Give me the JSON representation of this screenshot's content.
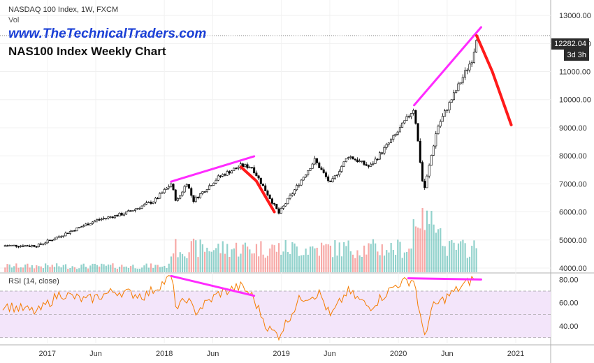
{
  "header": {
    "title": "NASDAQ 100 Index, 1W, FXCM",
    "volume_label": "Vol",
    "website": "www.TheTechnicalTraders.com",
    "chart_title": "NAS100 Index Weekly Chart",
    "rsi_label": "RSI (14, close)",
    "last_price": "12282.04",
    "countdown": "3d 3h"
  },
  "colors": {
    "up": "#26a69a",
    "down": "#ef5350",
    "candle": "#000000",
    "rsi_line": "#f57c00",
    "rsi_band": "#f3e5fa",
    "trendline": "#ff2bff",
    "projection": "#ff1a1a",
    "website": "#1a3fd6"
  },
  "chart_data": [
    {
      "type": "candlestick",
      "title": "NAS100 Index Weekly Chart",
      "y_ticks": [
        4000,
        5000,
        6000,
        7000,
        8000,
        9000,
        10000,
        11000,
        12000,
        13000
      ],
      "y_tick_labels": [
        "4000.00",
        "5000.00",
        "6000.00",
        "7000.00",
        "8000.00",
        "9000.00",
        "10000.00",
        "11000.00",
        "12000.00",
        "13000.00"
      ],
      "ylim": [
        3850,
        13550
      ],
      "x_ticks": [
        "2017",
        "Jun",
        "2018",
        "Jun",
        "2019",
        "Jun",
        "2020",
        "Jun",
        "2021"
      ],
      "x_tick_dates": [
        "2017-01-01",
        "2017-06-01",
        "2018-01-01",
        "2018-06-01",
        "2019-01-01",
        "2019-06-01",
        "2020-01-01",
        "2020-06-01",
        "2021-01-01"
      ],
      "xlim": [
        "2016-08-15",
        "2021-04-20"
      ],
      "price_path": [
        [
          "2016-08-15",
          4800
        ],
        [
          "2016-12-01",
          4800
        ],
        [
          "2017-02-01",
          5100
        ],
        [
          "2017-06-01",
          5700
        ],
        [
          "2017-09-01",
          5950
        ],
        [
          "2017-12-01",
          6400
        ],
        [
          "2018-01-22",
          7000
        ],
        [
          "2018-02-08",
          6350
        ],
        [
          "2018-03-12",
          7050
        ],
        [
          "2018-04-01",
          6400
        ],
        [
          "2018-06-20",
          7250
        ],
        [
          "2018-08-28",
          7650
        ],
        [
          "2018-10-01",
          7600
        ],
        [
          "2018-12-24",
          5950
        ],
        [
          "2019-04-15",
          7850
        ],
        [
          "2019-06-03",
          7000
        ],
        [
          "2019-07-29",
          8000
        ],
        [
          "2019-10-03",
          7600
        ],
        [
          "2019-12-27",
          8800
        ],
        [
          "2020-02-19",
          9700
        ],
        [
          "2020-03-20",
          6700
        ],
        [
          "2020-05-01",
          9000
        ],
        [
          "2020-08-20",
          11500
        ],
        [
          "2020-09-01",
          12282
        ]
      ],
      "volume_ticks": [
        4000,
        5000,
        6000
      ],
      "volume_note": "volume histogram in lower portion of price pane",
      "trendlines": [
        {
          "x": [
            "2018-01-22",
            "2018-10-08"
          ],
          "y": [
            7080,
            7980
          ]
        },
        {
          "x": [
            "2020-02-19",
            "2020-09-15"
          ],
          "y": [
            9800,
            12580
          ]
        }
      ],
      "projections": [
        {
          "x": [
            "2018-08-28",
            "2018-10-15",
            "2018-12-10"
          ],
          "y": [
            7600,
            7100,
            6000
          ]
        },
        {
          "x": [
            "2020-09-01",
            "2020-10-20",
            "2020-12-18"
          ],
          "y": [
            12280,
            11000,
            9100
          ]
        }
      ]
    },
    {
      "type": "line",
      "title": "RSI (14, close)",
      "y_ticks": [
        40,
        60,
        80
      ],
      "y_tick_labels": [
        "40.00",
        "60.00",
        "80.00"
      ],
      "ylim": [
        25,
        85
      ],
      "band": [
        30,
        70
      ],
      "grid": true,
      "trendlines": [
        {
          "x": [
            "2018-01-22",
            "2018-10-08"
          ],
          "y": [
            83,
            66
          ]
        },
        {
          "x": [
            "2020-02-01",
            "2020-09-15"
          ],
          "y": [
            81,
            80
          ]
        }
      ],
      "series": [
        {
          "x": [
            "2016-08-15",
            "2016-12-01",
            "2017-02-10",
            "2017-05-01",
            "2017-08-01",
            "2017-11-01",
            "2018-01-22",
            "2018-02-09",
            "2018-03-12",
            "2018-04-06",
            "2018-06-20",
            "2018-08-28",
            "2018-10-01",
            "2018-11-20",
            "2018-12-24",
            "2019-03-01",
            "2019-05-01",
            "2019-06-03",
            "2019-07-26",
            "2019-10-03",
            "2019-12-27",
            "2020-02-19",
            "2020-03-20",
            "2020-04-17",
            "2020-06-05",
            "2020-08-28"
          ],
          "y": [
            58,
            52,
            68,
            62,
            70,
            66,
            82,
            54,
            64,
            52,
            68,
            74,
            66,
            38,
            32,
            64,
            68,
            48,
            70,
            56,
            76,
            80,
            30,
            56,
            66,
            82
          ]
        }
      ]
    }
  ]
}
